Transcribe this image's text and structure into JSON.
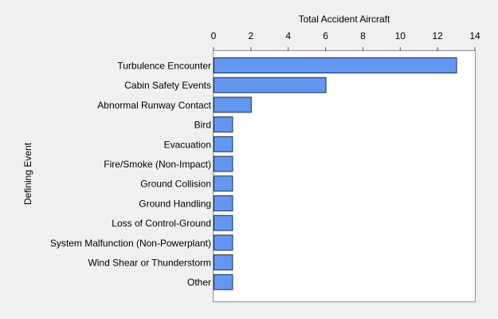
{
  "chart_data": {
    "type": "bar",
    "orientation": "horizontal",
    "xlabel": "Total Accident Aircraft",
    "ylabel": "Defining Event",
    "xlim": [
      0,
      14
    ],
    "xticks": [
      "0",
      "2",
      "4",
      "6",
      "8",
      "10",
      "12",
      "14"
    ],
    "x_axis_position": "top",
    "grid": false,
    "categories": [
      "Turbulence Encounter",
      "Cabin Safety Events",
      "Abnormal Runway Contact",
      "Bird",
      "Evacuation",
      "Fire/Smoke (Non-Impact)",
      "Ground Collision",
      "Ground Handling",
      "Loss of Control-Ground",
      "System Malfunction (Non-Powerplant)",
      "Wind Shear or Thunderstorm",
      "Other"
    ],
    "values": [
      13,
      6,
      2,
      1,
      1,
      1,
      1,
      1,
      1,
      1,
      1,
      1
    ],
    "colors": {
      "bar_fill": "#6397f0",
      "bar_stroke": "#1f2f4a",
      "background": "#f0f0f0",
      "plot_background": "#ffffff"
    }
  }
}
